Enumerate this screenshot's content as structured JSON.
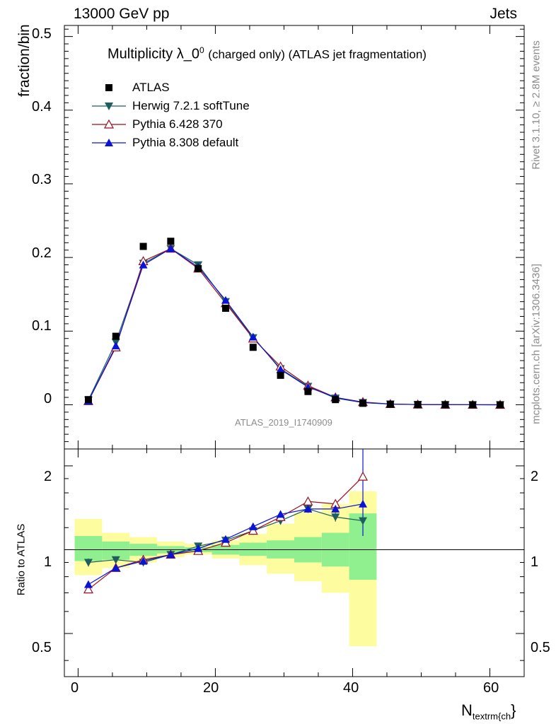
{
  "header": {
    "left": "13000 GeV pp",
    "right": "Jets"
  },
  "side_labels": {
    "rivet": "Rivet 3.1.10, ≥ 2.8M events",
    "mcplots": "mcplots.cern.ch [arXiv:1306.3436]"
  },
  "chart_data": {
    "type": "scatter",
    "title_main": "Multiplicity λ_0",
    "title_sup": "0",
    "title_tail": "(charged only) (ATLAS jet fragmentation)",
    "analysis_id": "ATLAS_2019_I1740909",
    "xlabel": "N",
    "xlabel_sub": "textrm{ch",
    "xlabel_close": "}",
    "ylabel": "fraction/bin",
    "ratio_ylabel": "Ratio to ATLAS",
    "xlim": [
      -2,
      65
    ],
    "ylim": [
      -0.06,
      0.515
    ],
    "ratio_ylim": [
      0.35,
      2.3
    ],
    "x_ticks": [
      0,
      20,
      40,
      60
    ],
    "x_tick_labels": [
      "0",
      "20",
      "40",
      "60"
    ],
    "y_ticks": [
      0,
      0.1,
      0.2,
      0.3,
      0.4,
      0.5
    ],
    "y_tick_labels": [
      "0",
      "0.1",
      "0.2",
      "0.3",
      "0.4",
      "0.5"
    ],
    "ratio_ticks": [
      0.5,
      1,
      2
    ],
    "ratio_tick_labels": [
      "0.5",
      "1",
      "2"
    ],
    "x": [
      1.5,
      5.5,
      9.5,
      13.5,
      17.5,
      21.5,
      25.5,
      29.5,
      33.5,
      37.5,
      41.5,
      45.5,
      49.5,
      53.5,
      57.5,
      61.5
    ],
    "series": [
      {
        "name": "ATLAS",
        "color": "#000000",
        "marker": "square",
        "values": [
          0.007,
          0.093,
          0.215,
          0.222,
          0.185,
          0.131,
          0.078,
          0.04,
          0.018,
          0.007,
          0.002,
          0.0007,
          0.0002,
          0.0001,
          5e-05,
          2e-05
        ]
      },
      {
        "name": "Herwig 7.2.1 softTune",
        "color": "#1e5e5c",
        "marker": "triangle-down",
        "values": [
          0.0065,
          0.085,
          0.192,
          0.212,
          0.19,
          0.14,
          0.091,
          0.049,
          0.025,
          0.009,
          0.003,
          0.0009,
          0.0003,
          0.0001,
          4e-05,
          1e-05
        ],
        "ratio": [
          0.9,
          0.92,
          0.9,
          0.96,
          1.03,
          1.08,
          1.17,
          1.27,
          1.4,
          1.31,
          1.27
        ]
      },
      {
        "name": "Pythia 6.428 370",
        "color": "#9b0f1e",
        "marker": "triangle-up-open",
        "values": [
          0.005,
          0.078,
          0.195,
          0.212,
          0.185,
          0.138,
          0.09,
          0.052,
          0.026,
          0.01,
          0.0037,
          0.001,
          0.0003,
          0.0001,
          4e-05,
          1e-05
        ],
        "ratio": [
          0.72,
          0.86,
          0.92,
          0.96,
          0.99,
          1.06,
          1.17,
          1.31,
          1.49,
          1.46,
          1.83
        ]
      },
      {
        "name": "Pythia 8.308 default",
        "color": "#0a14d6",
        "marker": "triangle-up",
        "values": [
          0.005,
          0.08,
          0.19,
          0.212,
          0.187,
          0.142,
          0.092,
          0.048,
          0.024,
          0.01,
          0.003,
          0.001,
          0.0003,
          0.0001,
          4e-05,
          1e-05
        ],
        "ratio": [
          0.75,
          0.86,
          0.91,
          0.96,
          1.01,
          1.09,
          1.21,
          1.34,
          1.4,
          1.4,
          1.46
        ]
      }
    ],
    "herwig_ratio_errors": [
      0.03,
      0.02,
      0.015,
      0.01,
      0.01,
      0.015,
      0.02,
      0.03,
      0.04,
      0.05,
      0.08
    ],
    "pythia8_last_ratio_error": [
      1.12,
      2.3
    ],
    "uncertainty_bands": {
      "edges": [
        -0.5,
        3.5,
        7.5,
        11.5,
        15.5,
        19.5,
        23.5,
        27.5,
        31.5,
        35.5,
        39.5,
        43.5
      ],
      "stat_low": [
        0.91,
        0.92,
        0.95,
        0.97,
        0.98,
        0.96,
        0.95,
        0.93,
        0.9,
        0.87,
        0.78
      ],
      "stat_high": [
        1.12,
        1.07,
        1.05,
        1.03,
        1.02,
        1.04,
        1.06,
        1.08,
        1.11,
        1.15,
        1.35
      ],
      "tot_low": [
        0.81,
        0.86,
        0.9,
        0.94,
        0.96,
        0.93,
        0.88,
        0.82,
        0.77,
        0.7,
        0.45
      ],
      "tot_high": [
        1.29,
        1.15,
        1.11,
        1.07,
        1.05,
        1.08,
        1.14,
        1.24,
        1.36,
        1.46,
        1.62
      ],
      "stat_color": "#90f090",
      "tot_color": "#fdfc9e"
    }
  }
}
